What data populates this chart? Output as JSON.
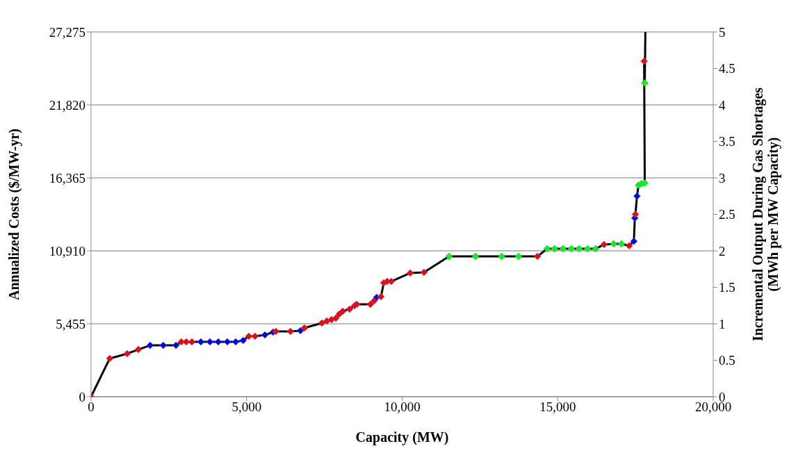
{
  "chart_data": {
    "type": "line",
    "xlabel": "Capacity (MW)",
    "ylabel": "Annualized Costs ($/MW-yr)",
    "y2label": "Incremental Output During Gas Shortages\n(MWh per MW Capacity)",
    "xlim": [
      0,
      20000
    ],
    "xticks": [
      {
        "value": 0,
        "label": "0"
      },
      {
        "value": 5000,
        "label": "5,000"
      },
      {
        "value": 10000,
        "label": "10,000"
      },
      {
        "value": 15000,
        "label": "15,000"
      },
      {
        "value": 20000,
        "label": "20,000"
      }
    ],
    "ylim": [
      0,
      27275
    ],
    "yticks": [
      {
        "value": 0,
        "label": "0"
      },
      {
        "value": 5455,
        "label": "5,455"
      },
      {
        "value": 10910,
        "label": "10,910"
      },
      {
        "value": 16365,
        "label": "16,365"
      },
      {
        "value": 21820,
        "label": "21,820"
      },
      {
        "value": 27275,
        "label": "27,275"
      }
    ],
    "y2lim": [
      0,
      5
    ],
    "y2ticks": [
      0,
      0.5,
      1,
      1.5,
      2,
      2.5,
      3,
      3.5,
      4,
      4.5,
      5
    ],
    "grid": "y",
    "marker": "diamond",
    "line_style": "solid",
    "series": [
      {
        "color": "#000000",
        "x": [
          0,
          600,
          1160,
          1520,
          1900,
          2320,
          2730,
          2900,
          3060,
          3240,
          3530,
          3820,
          4090,
          4380,
          4650,
          4890,
          5070,
          5270,
          5590,
          5850,
          5940,
          6410,
          6730,
          6860,
          7420,
          7580,
          7730,
          7870,
          7980,
          8090,
          8310,
          8470,
          8540,
          8980,
          9100,
          9180,
          9320,
          9410,
          9520,
          9650,
          10260,
          10700,
          11510,
          12360,
          13200,
          13740,
          14350,
          14660,
          14900,
          15170,
          15440,
          15690,
          15960,
          16220,
          16490,
          16800,
          17050,
          17300,
          17450,
          17480,
          17500,
          17550,
          17600,
          17700,
          17800,
          17780,
          17800,
          17820
        ],
        "values": [
          0,
          2860,
          3220,
          3530,
          3840,
          3840,
          3840,
          4100,
          4100,
          4100,
          4100,
          4100,
          4100,
          4100,
          4100,
          4210,
          4520,
          4520,
          4620,
          4830,
          4880,
          4880,
          4940,
          5140,
          5510,
          5660,
          5770,
          5870,
          6180,
          6390,
          6550,
          6810,
          6910,
          6910,
          7170,
          7430,
          7480,
          8520,
          8620,
          8620,
          9250,
          9300,
          10490,
          10490,
          10490,
          10490,
          10490,
          11060,
          11060,
          11060,
          11060,
          11060,
          11060,
          11060,
          11380,
          11430,
          11430,
          11290,
          11620,
          13360,
          13640,
          15000,
          15820,
          15930,
          15980,
          25090,
          23460,
          27275
        ],
        "colors": [
          "#ff0000",
          "#ff0000",
          "#ff0000",
          "#ff0000",
          "#0000ff",
          "#0000ff",
          "#0000ff",
          "#ff0000",
          "#ff0000",
          "#ff0000",
          "#0000ff",
          "#0000ff",
          "#0000ff",
          "#0000ff",
          "#0000ff",
          "#0000ff",
          "#ff0000",
          "#ff0000",
          "#0000ff",
          "#0000ff",
          "#ff0000",
          "#ff0000",
          "#0000ff",
          "#ff0000",
          "#ff0000",
          "#ff0000",
          "#ff0000",
          "#ff0000",
          "#ff0000",
          "#ff0000",
          "#ff0000",
          "#ff0000",
          "#ff0000",
          "#ff0000",
          "#ff0000",
          "#0000ff",
          "#ff0000",
          "#ff0000",
          "#ff0000",
          "#ff0000",
          "#ff0000",
          "#ff0000",
          "#00ff00",
          "#00ff00",
          "#00ff00",
          "#00ff00",
          "#ff0000",
          "#00ff00",
          "#00ff00",
          "#00ff00",
          "#00ff00",
          "#00ff00",
          "#00ff00",
          "#00ff00",
          "#ff0000",
          "#00ff00",
          "#00ff00",
          "#ff0000",
          "#0000ff",
          "#0000ff",
          "#ff0000",
          "#0000ff",
          "#00ff00",
          "#00ff00",
          "#00ff00",
          "#ff0000",
          "#00ff00",
          null
        ]
      }
    ]
  }
}
